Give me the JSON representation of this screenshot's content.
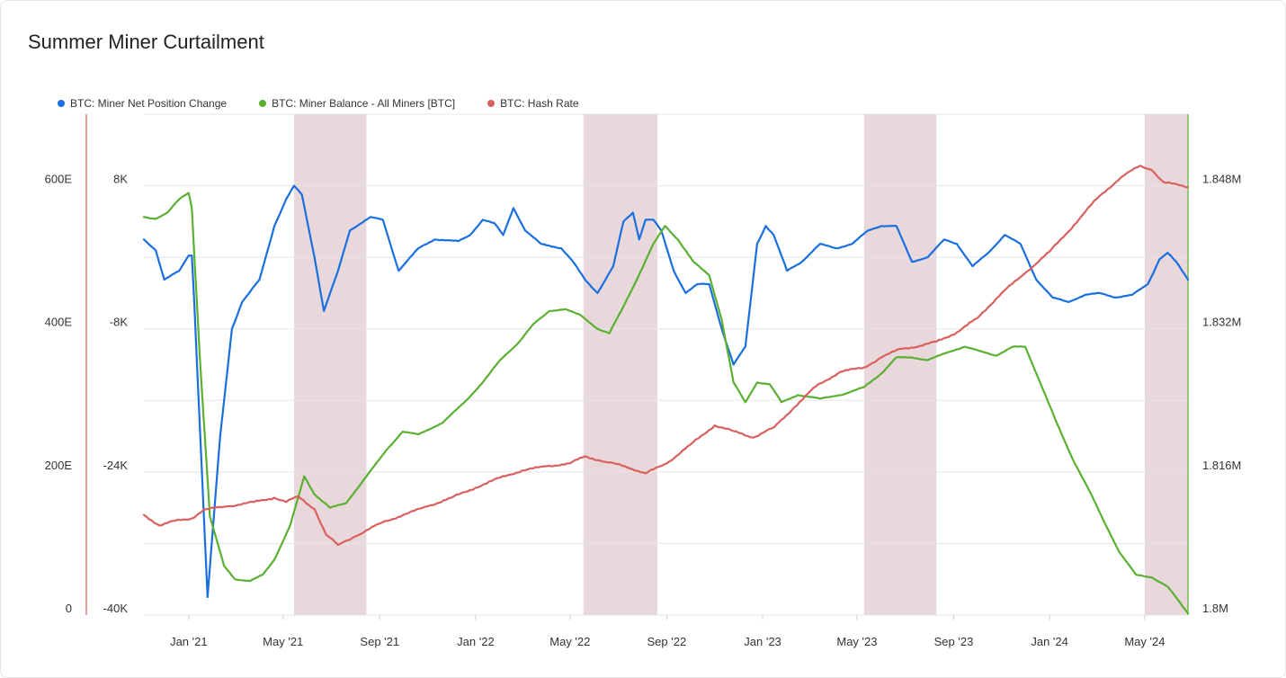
{
  "title": "Summer Miner Curtailment",
  "colors": {
    "blue": "#1a6fe0",
    "green": "#5ab031",
    "red": "#d9605f",
    "band": "#e8d7db",
    "grid": "#e5e5e5"
  },
  "chart_data": {
    "type": "line",
    "title": "Summer Miner Curtailment",
    "legend_position": "top-left",
    "grid": true,
    "x": {
      "type": "date",
      "range": [
        "2020-11-05",
        "2024-06-25"
      ],
      "tick_labels": [
        "Jan '21",
        "May '21",
        "Sep '21",
        "Jan '22",
        "May '22",
        "Sep '22",
        "Jan '23",
        "May '23",
        "Sep '23",
        "Jan '24",
        "May '24"
      ]
    },
    "axes": {
      "hash_rate": {
        "side": "left-outer",
        "range": [
          0,
          700
        ],
        "tick_labels": [
          "0",
          "200E",
          "400E",
          "600E"
        ]
      },
      "net_position": {
        "side": "left-inner",
        "range": [
          -40000,
          16000
        ],
        "tick_labels": [
          "-40K",
          "-24K",
          "-8K",
          "8K"
        ]
      },
      "miner_balance": {
        "side": "right",
        "range": [
          1800000,
          1856000
        ],
        "tick_labels": [
          "1.8M",
          "1.816M",
          "1.832M",
          "1.848M"
        ]
      }
    },
    "shaded_periods": [
      {
        "start": "2021-05-15",
        "end": "2021-08-15"
      },
      {
        "start": "2022-05-18",
        "end": "2022-08-20"
      },
      {
        "start": "2023-05-10",
        "end": "2023-08-10"
      },
      {
        "start": "2024-05-01",
        "end": "2024-06-25"
      }
    ],
    "series": [
      {
        "name": "BTC: Miner Net Position Change",
        "axis": "net_position",
        "color": "#1a6fe0",
        "points": [
          [
            "2020-11-05",
            2000
          ],
          [
            "2020-11-20",
            800
          ],
          [
            "2020-12-01",
            -2500
          ],
          [
            "2020-12-20",
            -1500
          ],
          [
            "2021-01-01",
            200
          ],
          [
            "2021-01-05",
            200
          ],
          [
            "2021-01-08",
            -5000
          ],
          [
            "2021-01-25",
            -38000
          ],
          [
            "2021-02-10",
            -20000
          ],
          [
            "2021-02-25",
            -8000
          ],
          [
            "2021-03-10",
            -5000
          ],
          [
            "2021-04-01",
            -2500
          ],
          [
            "2021-04-20",
            3500
          ],
          [
            "2021-05-05",
            6500
          ],
          [
            "2021-05-15",
            8000
          ],
          [
            "2021-05-25",
            7000
          ],
          [
            "2021-06-10",
            0
          ],
          [
            "2021-06-22",
            -6000
          ],
          [
            "2021-07-10",
            -1500
          ],
          [
            "2021-07-25",
            3000
          ],
          [
            "2021-08-20",
            4500
          ],
          [
            "2021-09-05",
            4200
          ],
          [
            "2021-09-25",
            -1500
          ],
          [
            "2021-10-20",
            1000
          ],
          [
            "2021-11-10",
            2000
          ],
          [
            "2021-12-10",
            1800
          ],
          [
            "2021-12-25",
            2500
          ],
          [
            "2022-01-10",
            4200
          ],
          [
            "2022-01-25",
            3800
          ],
          [
            "2022-02-05",
            2500
          ],
          [
            "2022-02-18",
            5500
          ],
          [
            "2022-03-05",
            3000
          ],
          [
            "2022-03-25",
            1500
          ],
          [
            "2022-04-20",
            1000
          ],
          [
            "2022-05-05",
            -500
          ],
          [
            "2022-05-20",
            -2500
          ],
          [
            "2022-06-05",
            -4000
          ],
          [
            "2022-06-25",
            -1000
          ],
          [
            "2022-07-08",
            4000
          ],
          [
            "2022-07-20",
            5000
          ],
          [
            "2022-07-28",
            2000
          ],
          [
            "2022-08-05",
            4200
          ],
          [
            "2022-08-15",
            4200
          ],
          [
            "2022-08-25",
            3000
          ],
          [
            "2022-09-10",
            -1500
          ],
          [
            "2022-09-25",
            -4000
          ],
          [
            "2022-10-10",
            -3000
          ],
          [
            "2022-10-25",
            -3000
          ],
          [
            "2022-11-10",
            -8000
          ],
          [
            "2022-11-25",
            -12000
          ],
          [
            "2022-12-10",
            -10000
          ],
          [
            "2022-12-25",
            1500
          ],
          [
            "2023-01-05",
            3500
          ],
          [
            "2023-01-15",
            2500
          ],
          [
            "2023-02-01",
            -1500
          ],
          [
            "2023-02-20",
            -500
          ],
          [
            "2023-03-15",
            1500
          ],
          [
            "2023-04-05",
            1000
          ],
          [
            "2023-04-25",
            1500
          ],
          [
            "2023-05-15",
            3000
          ],
          [
            "2023-06-01",
            3500
          ],
          [
            "2023-06-20",
            3500
          ],
          [
            "2023-07-10",
            -500
          ],
          [
            "2023-07-30",
            0
          ],
          [
            "2023-08-20",
            2000
          ],
          [
            "2023-09-05",
            1500
          ],
          [
            "2023-09-25",
            -1000
          ],
          [
            "2023-10-15",
            500
          ],
          [
            "2023-11-05",
            2500
          ],
          [
            "2023-11-25",
            1500
          ],
          [
            "2023-12-15",
            -2500
          ],
          [
            "2024-01-05",
            -4500
          ],
          [
            "2024-01-25",
            -5000
          ],
          [
            "2024-02-15",
            -4200
          ],
          [
            "2024-03-05",
            -4000
          ],
          [
            "2024-03-25",
            -4500
          ],
          [
            "2024-04-15",
            -4200
          ],
          [
            "2024-05-05",
            -3000
          ],
          [
            "2024-05-20",
            -200
          ],
          [
            "2024-05-30",
            500
          ],
          [
            "2024-06-10",
            -500
          ],
          [
            "2024-06-25",
            -2500
          ]
        ]
      },
      {
        "name": "BTC: Miner Balance - All Miners [BTC]",
        "axis": "miner_balance",
        "color": "#5ab031",
        "points": [
          [
            "2020-11-05",
            1844500
          ],
          [
            "2020-11-20",
            1844300
          ],
          [
            "2020-12-05",
            1845000
          ],
          [
            "2020-12-20",
            1846500
          ],
          [
            "2021-01-01",
            1847200
          ],
          [
            "2021-01-05",
            1845500
          ],
          [
            "2021-01-15",
            1829000
          ],
          [
            "2021-01-28",
            1811000
          ],
          [
            "2021-02-15",
            1805500
          ],
          [
            "2021-03-01",
            1804000
          ],
          [
            "2021-03-20",
            1803800
          ],
          [
            "2021-04-05",
            1804500
          ],
          [
            "2021-04-20",
            1806200
          ],
          [
            "2021-05-10",
            1810000
          ],
          [
            "2021-05-28",
            1815500
          ],
          [
            "2021-06-10",
            1813500
          ],
          [
            "2021-06-30",
            1812000
          ],
          [
            "2021-07-20",
            1812500
          ],
          [
            "2021-08-15",
            1815500
          ],
          [
            "2021-09-10",
            1818500
          ],
          [
            "2021-09-30",
            1820500
          ],
          [
            "2021-10-20",
            1820200
          ],
          [
            "2021-11-20",
            1821500
          ],
          [
            "2021-12-20",
            1824000
          ],
          [
            "2022-01-10",
            1826000
          ],
          [
            "2022-02-01",
            1828500
          ],
          [
            "2022-02-25",
            1830500
          ],
          [
            "2022-03-15",
            1832500
          ],
          [
            "2022-04-05",
            1834000
          ],
          [
            "2022-04-25",
            1834200
          ],
          [
            "2022-05-15",
            1833500
          ],
          [
            "2022-06-05",
            1832000
          ],
          [
            "2022-06-20",
            1831500
          ],
          [
            "2022-07-05",
            1834000
          ],
          [
            "2022-07-25",
            1837500
          ],
          [
            "2022-08-15",
            1841500
          ],
          [
            "2022-08-30",
            1843500
          ],
          [
            "2022-09-15",
            1842000
          ],
          [
            "2022-10-05",
            1839500
          ],
          [
            "2022-10-25",
            1838000
          ],
          [
            "2022-11-10",
            1833000
          ],
          [
            "2022-11-25",
            1826000
          ],
          [
            "2022-12-10",
            1823800
          ],
          [
            "2022-12-25",
            1826000
          ],
          [
            "2023-01-10",
            1825800
          ],
          [
            "2023-01-25",
            1823800
          ],
          [
            "2023-02-15",
            1824600
          ],
          [
            "2023-03-15",
            1824200
          ],
          [
            "2023-04-15",
            1824700
          ],
          [
            "2023-05-10",
            1825500
          ],
          [
            "2023-06-01",
            1827000
          ],
          [
            "2023-06-20",
            1828800
          ],
          [
            "2023-07-10",
            1828800
          ],
          [
            "2023-07-30",
            1828500
          ],
          [
            "2023-08-25",
            1829400
          ],
          [
            "2023-09-15",
            1830000
          ],
          [
            "2023-10-05",
            1829500
          ],
          [
            "2023-10-25",
            1829000
          ],
          [
            "2023-11-15",
            1830000
          ],
          [
            "2023-12-01",
            1830000
          ],
          [
            "2023-12-20",
            1826000
          ],
          [
            "2024-01-10",
            1821500
          ],
          [
            "2024-01-30",
            1817500
          ],
          [
            "2024-02-20",
            1814000
          ],
          [
            "2024-03-10",
            1810500
          ],
          [
            "2024-03-30",
            1807000
          ],
          [
            "2024-04-20",
            1804500
          ],
          [
            "2024-05-10",
            1804200
          ],
          [
            "2024-05-30",
            1803200
          ],
          [
            "2024-06-25",
            1800200
          ]
        ]
      },
      {
        "name": "BTC: Hash Rate",
        "axis": "hash_rate",
        "color": "#d9605f",
        "points": [
          [
            "2020-11-05",
            140
          ],
          [
            "2020-11-25",
            125
          ],
          [
            "2020-12-15",
            132
          ],
          [
            "2021-01-05",
            135
          ],
          [
            "2021-01-20",
            147
          ],
          [
            "2021-02-20",
            152
          ],
          [
            "2021-03-25",
            158
          ],
          [
            "2021-04-20",
            164
          ],
          [
            "2021-05-05",
            158
          ],
          [
            "2021-05-20",
            166
          ],
          [
            "2021-06-10",
            148
          ],
          [
            "2021-06-25",
            112
          ],
          [
            "2021-07-10",
            98
          ],
          [
            "2021-08-01",
            110
          ],
          [
            "2021-09-01",
            128
          ],
          [
            "2021-10-01",
            140
          ],
          [
            "2021-11-01",
            152
          ],
          [
            "2021-12-01",
            164
          ],
          [
            "2022-01-01",
            178
          ],
          [
            "2022-02-01",
            192
          ],
          [
            "2022-03-01",
            202
          ],
          [
            "2022-04-01",
            208
          ],
          [
            "2022-05-01",
            212
          ],
          [
            "2022-05-20",
            222
          ],
          [
            "2022-06-15",
            214
          ],
          [
            "2022-07-10",
            208
          ],
          [
            "2022-08-05",
            198
          ],
          [
            "2022-09-01",
            212
          ],
          [
            "2022-10-01",
            238
          ],
          [
            "2022-11-01",
            265
          ],
          [
            "2022-11-25",
            257
          ],
          [
            "2022-12-20",
            248
          ],
          [
            "2023-01-15",
            262
          ],
          [
            "2023-02-10",
            290
          ],
          [
            "2023-03-10",
            320
          ],
          [
            "2023-04-10",
            340
          ],
          [
            "2023-05-10",
            346
          ],
          [
            "2023-06-01",
            360
          ],
          [
            "2023-06-25",
            372
          ],
          [
            "2023-07-20",
            376
          ],
          [
            "2023-08-10",
            382
          ],
          [
            "2023-09-05",
            395
          ],
          [
            "2023-10-01",
            415
          ],
          [
            "2023-11-01",
            450
          ],
          [
            "2023-12-01",
            478
          ],
          [
            "2024-01-01",
            508
          ],
          [
            "2024-02-01",
            545
          ],
          [
            "2024-03-01",
            582
          ],
          [
            "2024-04-01",
            612
          ],
          [
            "2024-04-25",
            628
          ],
          [
            "2024-05-10",
            622
          ],
          [
            "2024-05-25",
            605
          ],
          [
            "2024-06-25",
            598
          ]
        ]
      }
    ]
  }
}
